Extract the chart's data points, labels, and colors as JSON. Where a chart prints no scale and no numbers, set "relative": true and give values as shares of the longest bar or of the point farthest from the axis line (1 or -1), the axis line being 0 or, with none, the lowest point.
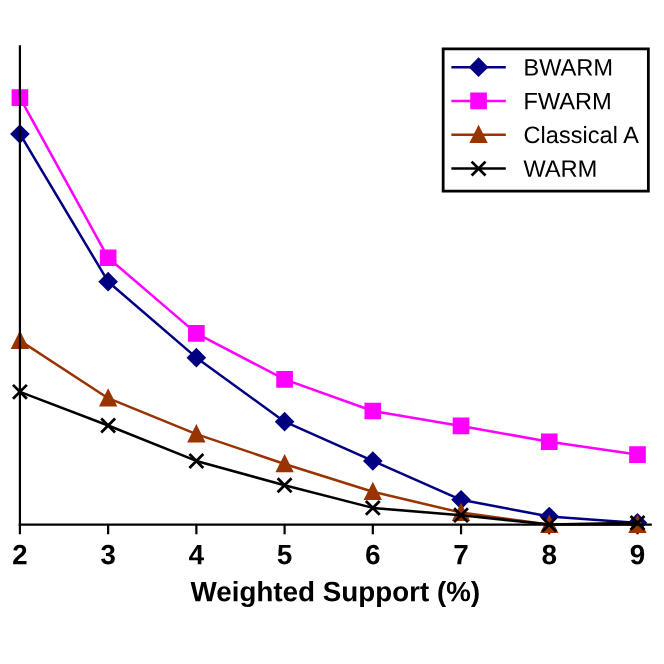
{
  "chart_data": {
    "type": "line",
    "xlabel": "Weighted Support (%)",
    "relative": true,
    "x": [
      2,
      3,
      4,
      5,
      6,
      7,
      8,
      9
    ],
    "xlim": [
      2,
      9.15
    ],
    "xticks": [
      2,
      3,
      4,
      5,
      6,
      7,
      8,
      9
    ],
    "series": [
      {
        "name": "BWARM",
        "color": "#000080",
        "marker": "diamond",
        "values": [
          0.915,
          0.569,
          0.391,
          0.241,
          0.149,
          0.058,
          0.019,
          0.004
        ]
      },
      {
        "name": "FWARM",
        "color": "#ff00ff",
        "marker": "square",
        "values": [
          1,
          0.625,
          0.448,
          0.34,
          0.266,
          0.231,
          0.194,
          0.164
        ]
      },
      {
        "name": "Classical A",
        "color": "#993300",
        "marker": "triangle",
        "values": [
          0.431,
          0.296,
          0.212,
          0.142,
          0.077,
          0.028,
          0,
          0
        ]
      },
      {
        "name": "WARM",
        "color": "#000000",
        "marker": "cross",
        "values": [
          0.311,
          0.232,
          0.149,
          0.092,
          0.039,
          0.022,
          0,
          0.004
        ]
      }
    ],
    "legend": "top right",
    "grid": false
  }
}
